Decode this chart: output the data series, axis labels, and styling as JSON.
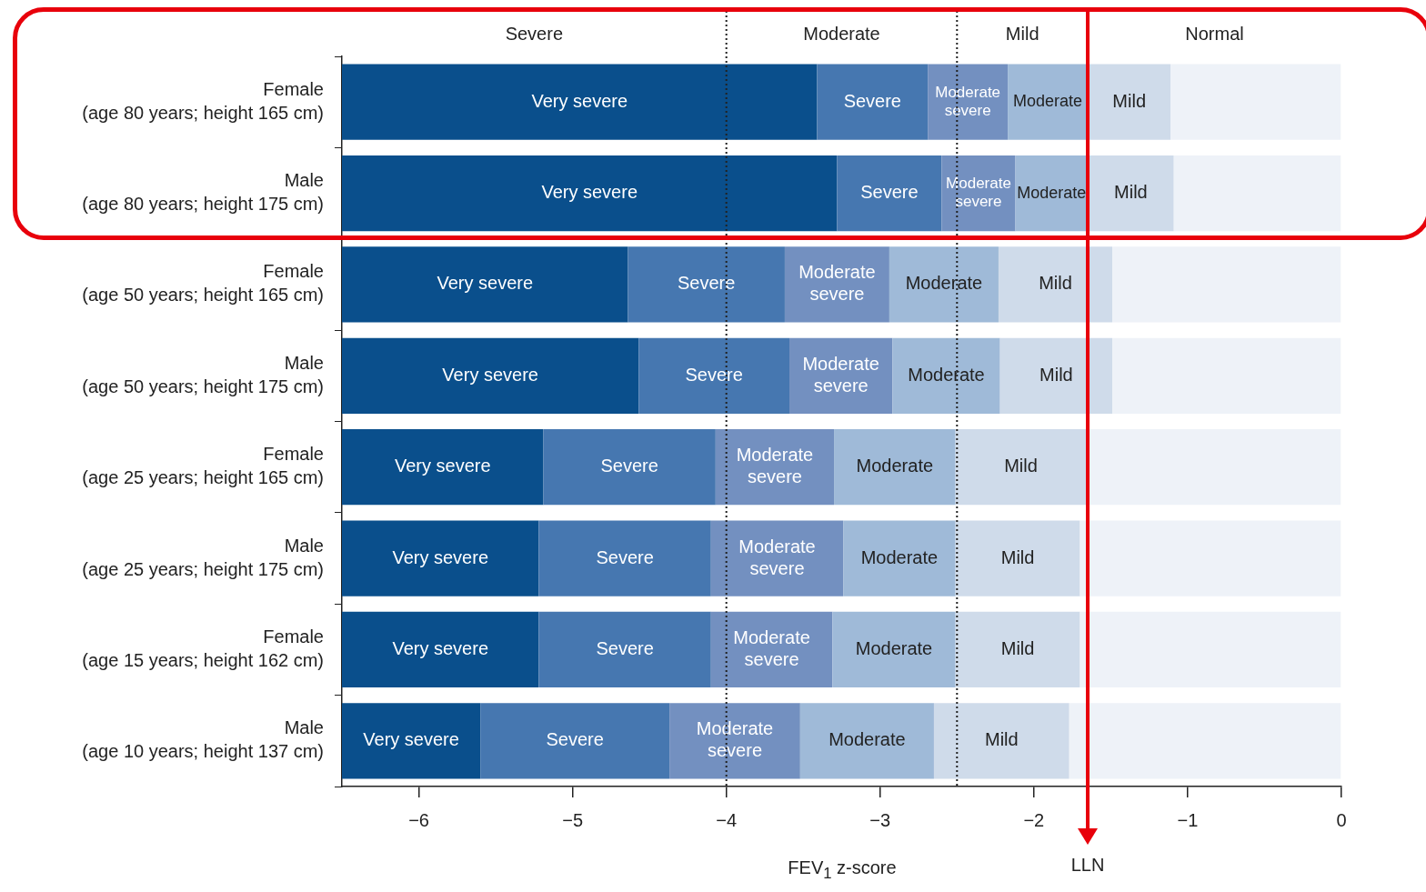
{
  "chart_data": {
    "type": "bar",
    "orientation": "horizontal",
    "stacked": true,
    "categories": [
      "Female\n(age 80 years; height 165 cm)",
      "Male\n(age 80 years; height 175 cm)",
      "Female\n(age 50 years; height 165 cm)",
      "Male\n(age 50 years; height 175 cm)",
      "Female\n(age 25 years; height 165 cm)",
      "Male\n(age 25 years; height 175 cm)",
      "Female\n(age 15 years; height 162 cm)",
      "Male\n(age 10 years; height 137 cm)"
    ],
    "series": [
      {
        "color": "#eef2f8",
        "values": [
          -1.11,
          -1.09,
          -1.49,
          -1.49,
          -1.66,
          -1.7,
          -1.7,
          -1.77
        ]
      },
      {
        "name": "Mild",
        "color": "#cfdbea",
        "values": [
          -0.54,
          -0.56,
          -0.74,
          -0.73,
          -0.85,
          -0.81,
          -0.81,
          -0.88
        ]
      },
      {
        "name": "Moderate",
        "color": "#9fbad8",
        "values": [
          -0.52,
          -0.47,
          -0.71,
          -0.7,
          -0.79,
          -0.73,
          -0.8,
          -0.87
        ]
      },
      {
        "name": "Moderate severe",
        "color": "#7390c0",
        "values": [
          -0.52,
          -0.48,
          -0.68,
          -0.67,
          -0.77,
          -0.86,
          -0.79,
          -0.85
        ]
      },
      {
        "name": "Severe",
        "color": "#4677b0",
        "values": [
          -0.72,
          -0.68,
          -1.02,
          -0.98,
          -1.12,
          -1.12,
          -1.12,
          -1.23
        ]
      },
      {
        "name": "Very severe",
        "color": "#0a4f8c",
        "values": [
          -3.09,
          -3.22,
          -1.86,
          -1.93,
          -1.31,
          -1.28,
          -1.28,
          -0.9
        ]
      }
    ],
    "xlim": [
      -6.5,
      0
    ],
    "xticks": [
      {
        "value": -6,
        "label": "−6"
      },
      {
        "value": -5,
        "label": "−5"
      },
      {
        "value": -4,
        "label": "−4"
      },
      {
        "value": -3,
        "label": "−3"
      },
      {
        "value": -2,
        "label": "−2"
      },
      {
        "value": -1,
        "label": "−1"
      },
      {
        "value": 0,
        "label": "0"
      }
    ],
    "xlabel": "FEV$_{1}$ z-score",
    "annotations": [
      "Severe",
      "Moderate",
      "Mild",
      "Normal"
    ],
    "ref_lines": [
      {
        "axis": "x",
        "value": -4,
        "line_style": "dotted",
        "color": "#222222"
      },
      {
        "axis": "x",
        "value": -2.5,
        "line_style": "dotted",
        "color": "#222222"
      },
      {
        "axis": "x",
        "value": -1.65,
        "line_style": "solid",
        "color": "#e8000b",
        "label": "LLN"
      }
    ],
    "grid": false,
    "legend": false
  }
}
